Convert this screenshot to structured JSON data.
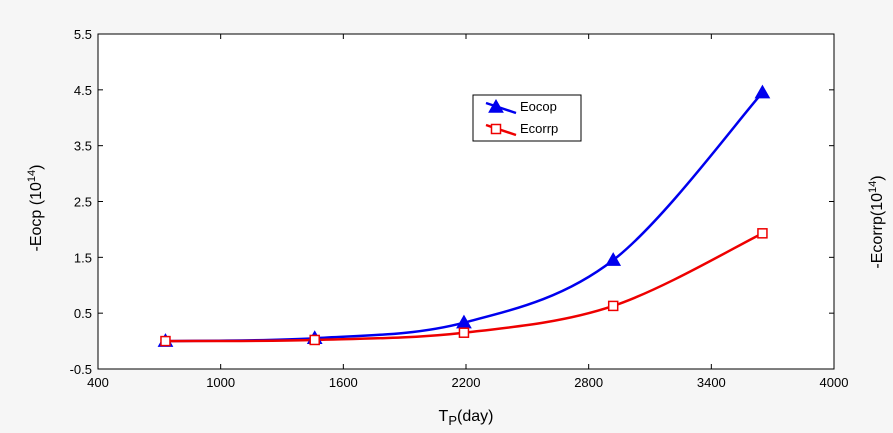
{
  "colors": {
    "background": "#f6f6f6",
    "plot_background": "#ffffff",
    "axis": "#000000",
    "legend_border": "#000000"
  },
  "chart_data": {
    "type": "line",
    "title": "",
    "xlabel_main": "T",
    "xlabel_sub": "P",
    "xlabel_tail": "(day)",
    "ylabel_left_main": "-Eocp (10",
    "ylabel_left_sup": "14",
    "ylabel_left_tail": ")",
    "ylabel_right_main": "-Ecorrp(10",
    "ylabel_right_sup": "14",
    "ylabel_right_tail": ")",
    "xlim": [
      400,
      4000
    ],
    "ylim": [
      -0.5,
      5.5
    ],
    "xticks": [
      400,
      1000,
      1600,
      2200,
      2800,
      3400,
      4000
    ],
    "yticks": [
      -0.5,
      0.5,
      1.5,
      2.5,
      3.5,
      4.5,
      5.5
    ],
    "xtick_labels": [
      "400",
      "1000",
      "1600",
      "2200",
      "2800",
      "3400",
      "4000"
    ],
    "ytick_labels": [
      "-0.5",
      "0.5",
      "1.5",
      "2.5",
      "3.5",
      "4.5",
      "5.5"
    ],
    "grid": false,
    "legend_position": "top-center",
    "series": [
      {
        "name": "Eocop",
        "color": "#0000ee",
        "marker": "filled-triangle",
        "x": [
          730,
          1460,
          2190,
          2920,
          3650
        ],
        "y": [
          0.0,
          0.05,
          0.33,
          1.45,
          4.45
        ]
      },
      {
        "name": "Ecorrp",
        "color": "#ee0000",
        "marker": "open-square",
        "x": [
          730,
          1460,
          2190,
          2920,
          3650
        ],
        "y": [
          0.0,
          0.02,
          0.15,
          0.63,
          1.93
        ]
      }
    ]
  }
}
